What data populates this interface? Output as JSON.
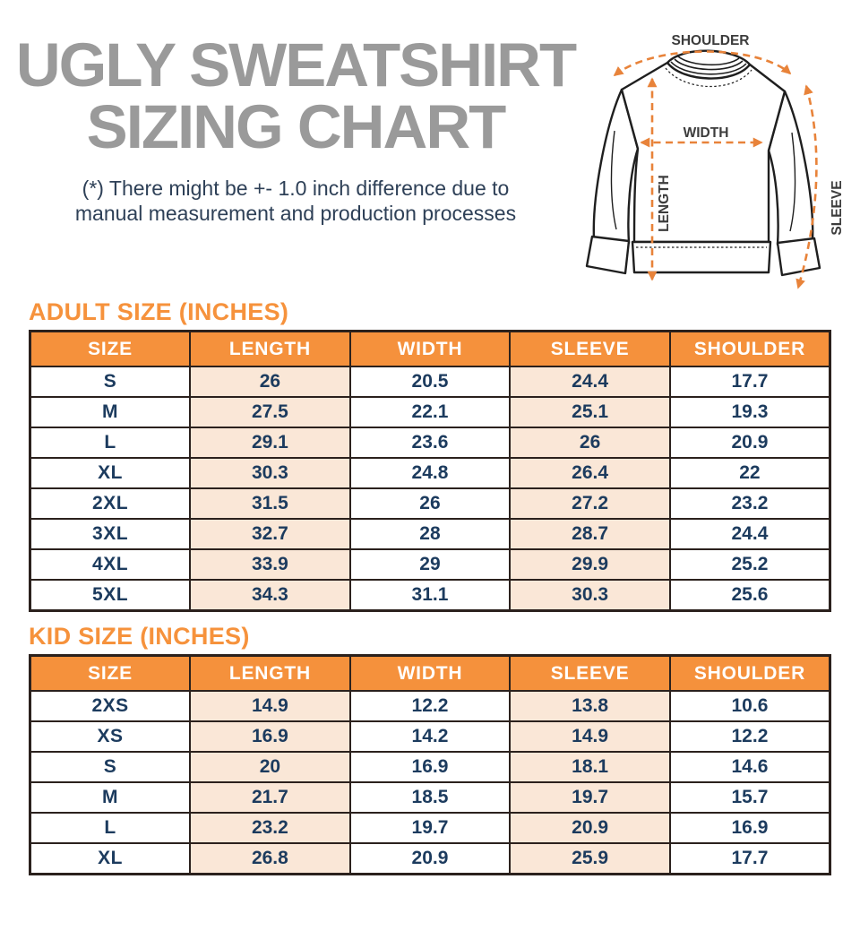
{
  "header": {
    "title_line1": "UGLY SWEATSHIRT",
    "title_line2": "SIZING CHART",
    "note_line1": "(*) There might be +- 1.0 inch difference due to",
    "note_line2": "manual measurement and production processes"
  },
  "diagram": {
    "shoulder_label": "SHOULDER",
    "width_label": "WIDTH",
    "length_label": "LENGTH",
    "sleeve_label": "SLEEVE"
  },
  "colors": {
    "accent_orange": "#F5913C",
    "heading_orange": "#F6923C",
    "peach_cell": "#FAE7D7",
    "navy_text": "#1C3B5E",
    "title_gray": "#9A9A9A",
    "table_border": "#2B211D",
    "arrow_orange": "#E8833A"
  },
  "chart_data": [
    {
      "type": "table",
      "title": "ADULT SIZE (INCHES)",
      "columns": [
        "SIZE",
        "LENGTH",
        "WIDTH",
        "SLEEVE",
        "SHOULDER"
      ],
      "rows": [
        [
          "S",
          26,
          20.5,
          24.4,
          17.7
        ],
        [
          "M",
          27.5,
          22.1,
          25.1,
          19.3
        ],
        [
          "L",
          29.1,
          23.6,
          26,
          20.9
        ],
        [
          "XL",
          30.3,
          24.8,
          26.4,
          22
        ],
        [
          "2XL",
          31.5,
          26,
          27.2,
          23.2
        ],
        [
          "3XL",
          32.7,
          28,
          28.7,
          24.4
        ],
        [
          "4XL",
          33.9,
          29,
          29.9,
          25.2
        ],
        [
          "5XL",
          34.3,
          31.1,
          30.3,
          25.6
        ]
      ]
    },
    {
      "type": "table",
      "title": "KID SIZE (INCHES)",
      "columns": [
        "SIZE",
        "LENGTH",
        "WIDTH",
        "SLEEVE",
        "SHOULDER"
      ],
      "rows": [
        [
          "2XS",
          14.9,
          12.2,
          13.8,
          10.6
        ],
        [
          "XS",
          16.9,
          14.2,
          14.9,
          12.2
        ],
        [
          "S",
          20,
          16.9,
          18.1,
          14.6
        ],
        [
          "M",
          21.7,
          18.5,
          19.7,
          15.7
        ],
        [
          "L",
          23.2,
          19.7,
          20.9,
          16.9
        ],
        [
          "XL",
          26.8,
          20.9,
          25.9,
          17.7
        ]
      ]
    }
  ]
}
